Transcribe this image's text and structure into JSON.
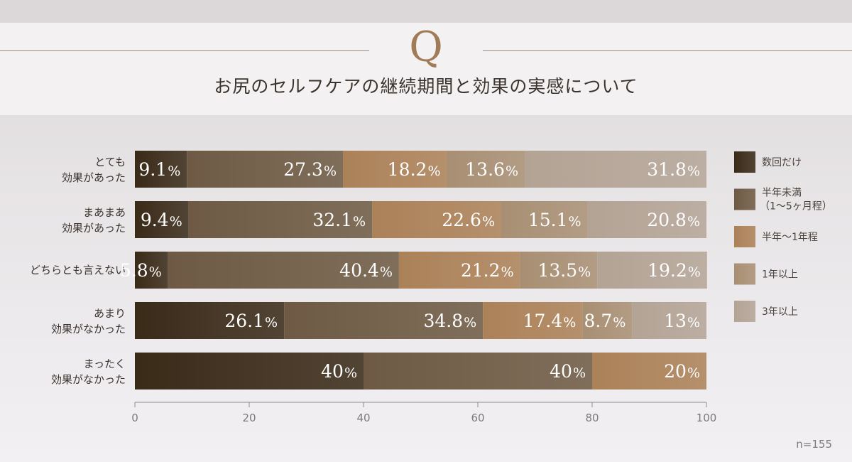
{
  "header": {
    "q_mark": "Q",
    "title": "お尻のセルフケアの継続期間と効果の実感について"
  },
  "sample_size": "n=155",
  "chart_data": {
    "type": "bar",
    "orientation": "horizontal",
    "stacked": true,
    "categories": [
      [
        "とても",
        "効果があった"
      ],
      [
        "まあまあ",
        "効果があった"
      ],
      [
        "どちらとも言えない"
      ],
      [
        "あまり",
        "効果がなかった"
      ],
      [
        "まったく",
        "効果がなかった"
      ]
    ],
    "series": [
      {
        "name": "数回だけ",
        "color": "#3a2a18",
        "values": [
          9.1,
          9.4,
          5.8,
          26.1,
          40
        ]
      },
      {
        "name": "半年未満\n（1～5ヶ月程）",
        "color": "#6e5a44",
        "values": [
          27.3,
          32.1,
          40.4,
          34.8,
          40
        ]
      },
      {
        "name": "半年～1年程",
        "color": "#ab8158",
        "values": [
          18.2,
          22.6,
          21.2,
          17.4,
          20
        ]
      },
      {
        "name": "1年以上",
        "color": "#a88f73",
        "values": [
          13.6,
          15.1,
          13.5,
          8.7,
          0
        ]
      },
      {
        "name": "3年以上",
        "color": "#b3a395",
        "values": [
          31.8,
          20.8,
          19.2,
          13,
          0
        ]
      }
    ],
    "xlim": [
      0,
      100
    ],
    "xticks": [
      0,
      20,
      40,
      60,
      80,
      100
    ],
    "value_suffix": "%",
    "legend_position": "right",
    "grid": false
  }
}
